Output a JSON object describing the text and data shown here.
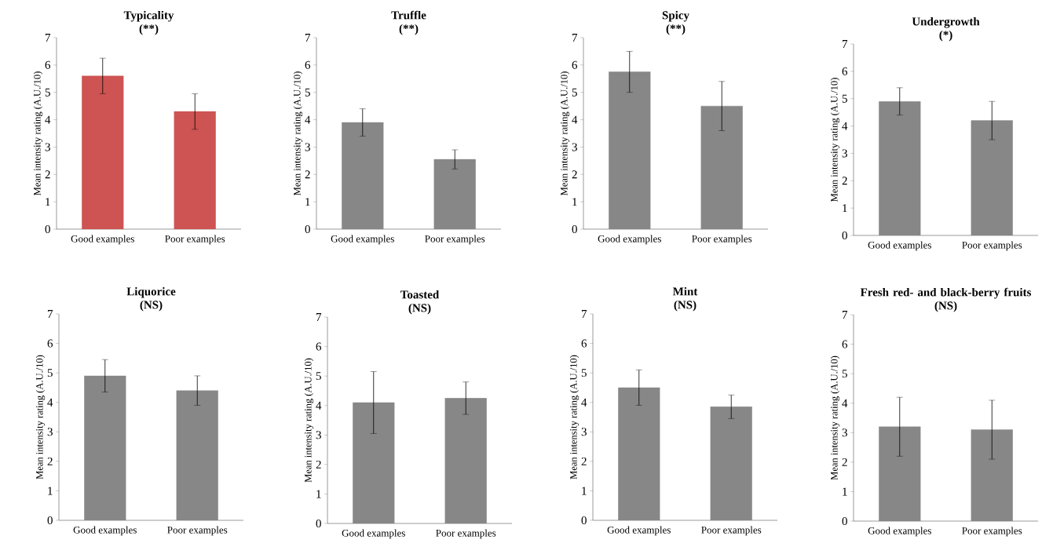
{
  "chart_data": [
    {
      "type": "bar",
      "title": "Typicality",
      "subtitle": "(**)",
      "ylabel": "Mean intensity rating (A.U./10)",
      "categories": [
        "Good examples",
        "Poor examples"
      ],
      "values": [
        5.6,
        4.3
      ],
      "errors": [
        0.65,
        0.65
      ],
      "color": "#cd5452",
      "ylim": [
        0,
        7
      ],
      "yticks": [
        0,
        1,
        2,
        3,
        4,
        5,
        6,
        7
      ]
    },
    {
      "type": "bar",
      "title": "Truffle",
      "subtitle": "(**)",
      "ylabel": "Mean intensity rating (A.U./10)",
      "categories": [
        "Good examples",
        "Poor examples"
      ],
      "values": [
        3.9,
        2.55
      ],
      "errors": [
        0.5,
        0.35
      ],
      "color": "#878787",
      "ylim": [
        0,
        7
      ],
      "yticks": [
        0,
        1,
        2,
        3,
        4,
        5,
        6,
        7
      ]
    },
    {
      "type": "bar",
      "title": "Spicy",
      "subtitle": "(**)",
      "ylabel": "Mean intensity rating (A.U./10)",
      "categories": [
        "Good examples",
        "Poor examples"
      ],
      "values": [
        5.75,
        4.5
      ],
      "errors": [
        0.75,
        0.9
      ],
      "color": "#878787",
      "ylim": [
        0,
        7
      ],
      "yticks": [
        0,
        1,
        2,
        3,
        4,
        5,
        6,
        7
      ]
    },
    {
      "type": "bar",
      "title": "Undergrowth",
      "subtitle": "(*)",
      "ylabel": "Mean intensity rating (A.U./10)",
      "categories": [
        "Good examples",
        "Poor examples"
      ],
      "values": [
        4.9,
        4.2
      ],
      "errors": [
        0.5,
        0.7
      ],
      "color": "#878787",
      "ylim": [
        0,
        7
      ],
      "yticks": [
        0,
        1,
        2,
        3,
        4,
        5,
        6,
        7
      ]
    },
    {
      "type": "bar",
      "title": "Liquorice",
      "subtitle": "(NS)",
      "ylabel": "Mean intensity rating (A.U./10)",
      "categories": [
        "Good examples",
        "Poor examples"
      ],
      "values": [
        4.9,
        4.4
      ],
      "errors": [
        0.55,
        0.5
      ],
      "color": "#878787",
      "ylim": [
        0,
        7
      ],
      "yticks": [
        0,
        1,
        2,
        3,
        4,
        5,
        6,
        7
      ]
    },
    {
      "type": "bar",
      "title": "Toasted",
      "subtitle": "(NS)",
      "ylabel": "Mean intensity rating (A.U./10)",
      "categories": [
        "Good examples",
        "Poor examples"
      ],
      "values": [
        4.1,
        4.25
      ],
      "errors": [
        1.05,
        0.55
      ],
      "color": "#878787",
      "ylim": [
        0,
        7
      ],
      "yticks": [
        0,
        1,
        2,
        3,
        4,
        5,
        6,
        7
      ]
    },
    {
      "type": "bar",
      "title": "Mint",
      "subtitle": "(NS)",
      "ylabel": "Mean intensity rating (A.U./10)",
      "categories": [
        "Good examples",
        "Poor examples"
      ],
      "values": [
        4.5,
        3.85
      ],
      "errors": [
        0.6,
        0.4
      ],
      "color": "#878787",
      "ylim": [
        0,
        7
      ],
      "yticks": [
        0,
        1,
        2,
        3,
        4,
        5,
        6,
        7
      ]
    },
    {
      "type": "bar",
      "title": "Fresh red- and black-berry fruits",
      "subtitle": "(NS)",
      "ylabel": "Mean intensity rating (A.U./10)",
      "categories": [
        "Good examples",
        "Poor examples"
      ],
      "values": [
        3.2,
        3.1
      ],
      "errors": [
        1.0,
        1.0
      ],
      "color": "#878787",
      "ylim": [
        0,
        7
      ],
      "yticks": [
        0,
        1,
        2,
        3,
        4,
        5,
        6,
        7
      ]
    }
  ]
}
